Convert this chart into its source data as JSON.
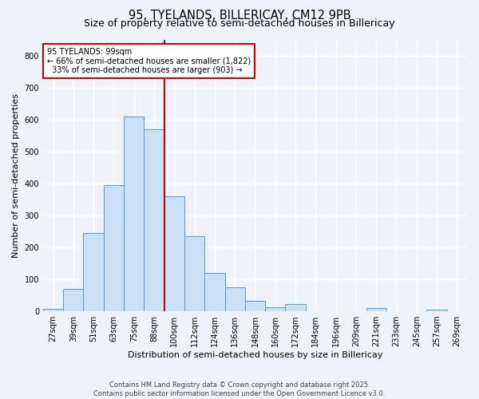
{
  "title": "95, TYELANDS, BILLERICAY, CM12 9PB",
  "subtitle": "Size of property relative to semi-detached houses in Billericay",
  "xlabel": "Distribution of semi-detached houses by size in Billericay",
  "ylabel": "Number of semi-detached properties",
  "bin_labels": [
    "27sqm",
    "39sqm",
    "51sqm",
    "63sqm",
    "75sqm",
    "88sqm",
    "100sqm",
    "112sqm",
    "124sqm",
    "136sqm",
    "148sqm",
    "160sqm",
    "172sqm",
    "184sqm",
    "196sqm",
    "209sqm",
    "221sqm",
    "233sqm",
    "245sqm",
    "257sqm",
    "269sqm"
  ],
  "bar_heights": [
    7,
    70,
    245,
    395,
    610,
    570,
    360,
    235,
    120,
    75,
    33,
    13,
    22,
    0,
    0,
    0,
    10,
    0,
    0,
    5,
    0
  ],
  "bar_color": "#cce0f5",
  "bar_edge_color": "#5599cc",
  "vline_color": "#cc0000",
  "vline_x_index": 6,
  "annotation_line1": "95 TYELANDS: 99sqm",
  "annotation_line2": "← 66% of semi-detached houses are smaller (1,822)",
  "annotation_line3": "  33% of semi-detached houses are larger (903) →",
  "annotation_box_color": "#ffffff",
  "annotation_box_edge": "#cc0000",
  "ylim": [
    0,
    850
  ],
  "yticks": [
    0,
    100,
    200,
    300,
    400,
    500,
    600,
    700,
    800
  ],
  "footer_text": "Contains HM Land Registry data © Crown copyright and database right 2025.\nContains public sector information licensed under the Open Government Licence v3.0.",
  "bg_color": "#eef2fb",
  "plot_bg_color": "#eef2fb",
  "grid_color": "#ffffff",
  "title_fontsize": 10.5,
  "subtitle_fontsize": 9,
  "axis_label_fontsize": 8,
  "tick_fontsize": 7,
  "annotation_fontsize": 7,
  "footer_fontsize": 6
}
